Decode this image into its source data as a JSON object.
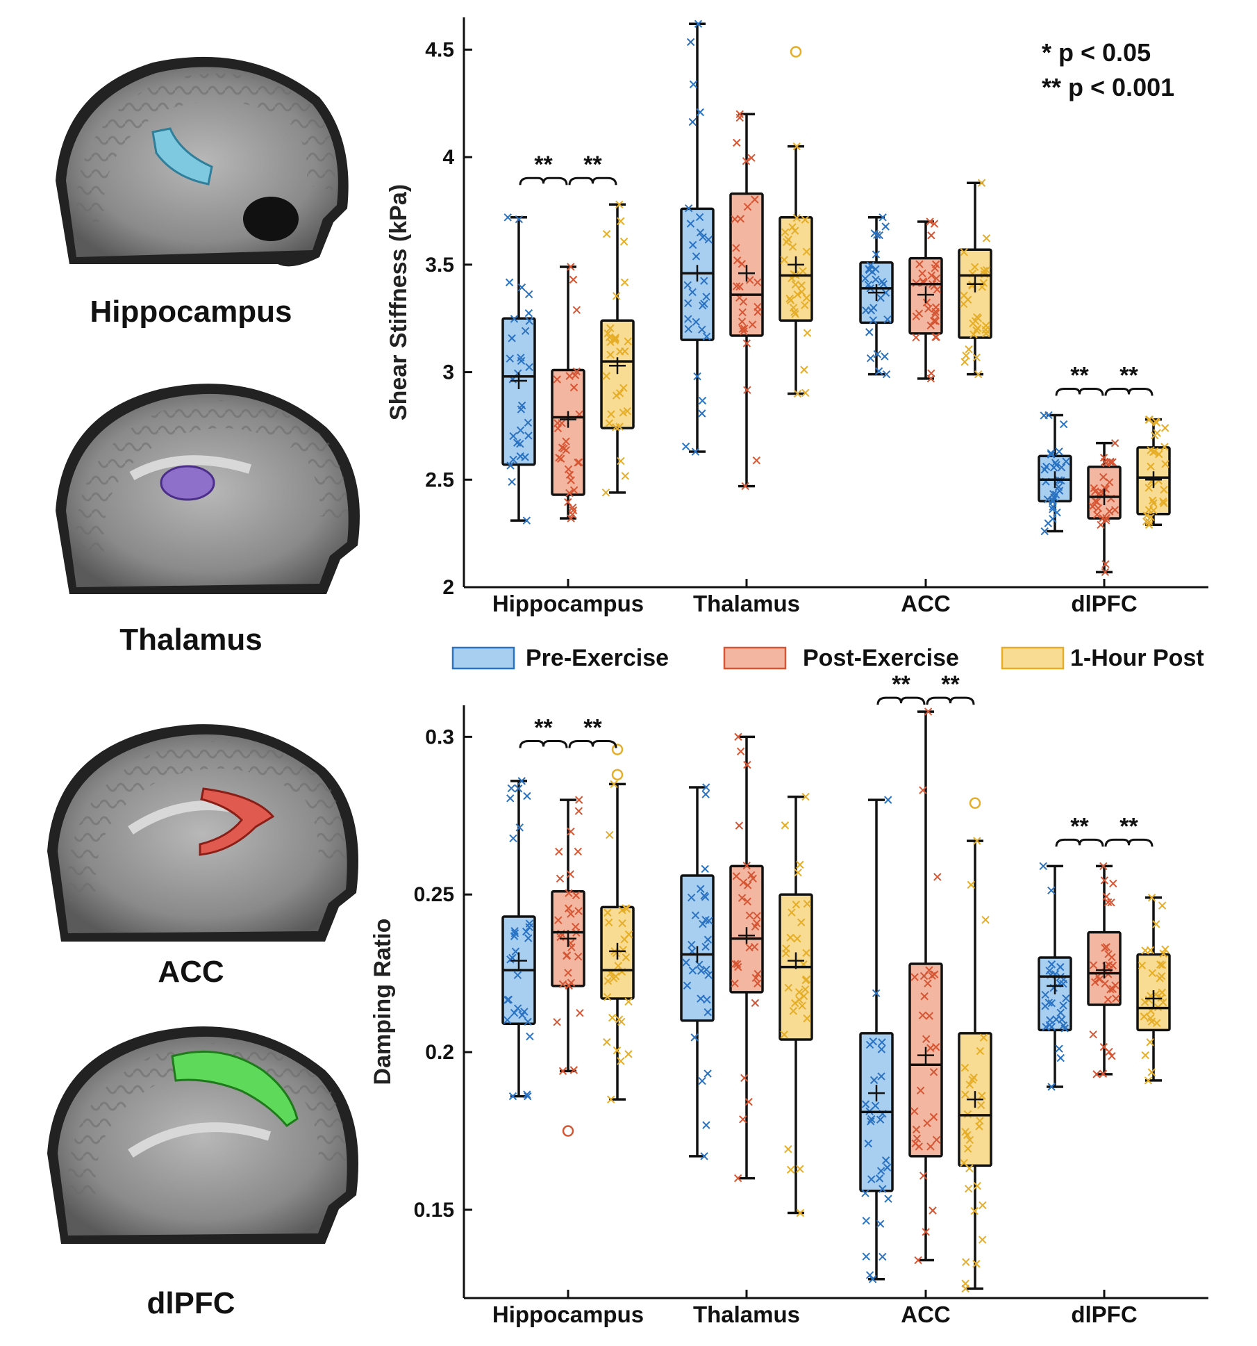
{
  "brain_panels": [
    {
      "label": "Hippocampus",
      "roi_color": "#7ec8e0"
    },
    {
      "label": "Thalamus",
      "roi_color": "#8e6fc9"
    },
    {
      "label": "ACC",
      "roi_color": "#e05a4f"
    },
    {
      "label": "dlPFC",
      "roi_color": "#5ed95a"
    }
  ],
  "legend": [
    {
      "label": "Pre-Exercise",
      "fill": "#a9cff0",
      "stroke": "#2a72c2",
      "pt": "#2a72c2"
    },
    {
      "label": "Post-Exercise",
      "fill": "#f3b6a1",
      "stroke": "#d65634",
      "pt": "#d65634"
    },
    {
      "label": "1-Hour Post",
      "fill": "#f8dc94",
      "stroke": "#e6ad26",
      "pt": "#e6ad26"
    }
  ],
  "significance_note": [
    "* p < 0.05",
    "** p < 0.001"
  ],
  "chart_data": [
    {
      "type": "box",
      "id": "stiffness",
      "ylabel": "Shear Stiffness (kPa)",
      "ylim": [
        2,
        4.65
      ],
      "yticks": [
        "2",
        "2.5",
        "3",
        "3.5",
        "4",
        "4.5"
      ],
      "categories": [
        "Hippocampus",
        "Thalamus",
        "ACC",
        "dlPFC"
      ],
      "series": [
        {
          "name": "Pre-Exercise",
          "boxes": [
            {
              "whisker_low": 2.31,
              "q1": 2.57,
              "median": 2.98,
              "q3": 3.25,
              "whisker_high": 3.72,
              "mean": 2.96,
              "outliers": []
            },
            {
              "whisker_low": 2.63,
              "q1": 3.15,
              "median": 3.46,
              "q3": 3.76,
              "whisker_high": 4.62,
              "mean": 3.46,
              "outliers": []
            },
            {
              "whisker_low": 2.99,
              "q1": 3.23,
              "median": 3.39,
              "q3": 3.51,
              "whisker_high": 3.72,
              "mean": 3.37,
              "outliers": []
            },
            {
              "whisker_low": 2.26,
              "q1": 2.4,
              "median": 2.5,
              "q3": 2.61,
              "whisker_high": 2.8,
              "mean": 2.5,
              "outliers": []
            }
          ]
        },
        {
          "name": "Post-Exercise",
          "boxes": [
            {
              "whisker_low": 2.32,
              "q1": 2.43,
              "median": 2.79,
              "q3": 3.01,
              "whisker_high": 3.49,
              "mean": 2.78,
              "outliers": []
            },
            {
              "whisker_low": 2.47,
              "q1": 3.17,
              "median": 3.36,
              "q3": 3.83,
              "whisker_high": 4.2,
              "mean": 3.46,
              "outliers": []
            },
            {
              "whisker_low": 2.97,
              "q1": 3.18,
              "median": 3.41,
              "q3": 3.53,
              "whisker_high": 3.7,
              "mean": 3.36,
              "outliers": []
            },
            {
              "whisker_low": 2.07,
              "q1": 2.32,
              "median": 2.42,
              "q3": 2.56,
              "whisker_high": 2.67,
              "mean": 2.42,
              "outliers": []
            }
          ]
        },
        {
          "name": "1-Hour Post",
          "boxes": [
            {
              "whisker_low": 2.44,
              "q1": 2.74,
              "median": 3.05,
              "q3": 3.24,
              "whisker_high": 3.78,
              "mean": 3.03,
              "outliers": []
            },
            {
              "whisker_low": 2.9,
              "q1": 3.24,
              "median": 3.45,
              "q3": 3.72,
              "whisker_high": 4.05,
              "mean": 3.5,
              "outliers": [
                4.49
              ]
            },
            {
              "whisker_low": 2.99,
              "q1": 3.16,
              "median": 3.45,
              "q3": 3.57,
              "whisker_high": 3.88,
              "mean": 3.41,
              "outliers": []
            },
            {
              "whisker_low": 2.29,
              "q1": 2.34,
              "median": 2.51,
              "q3": 2.65,
              "whisker_high": 2.78,
              "mean": 2.5,
              "outliers": []
            }
          ]
        }
      ],
      "significance": [
        {
          "category": 0,
          "from": 0,
          "to": 1,
          "label": "**"
        },
        {
          "category": 0,
          "from": 1,
          "to": 2,
          "label": "**"
        },
        {
          "category": 3,
          "from": 0,
          "to": 1,
          "label": "**"
        },
        {
          "category": 3,
          "from": 1,
          "to": 2,
          "label": "**"
        }
      ]
    },
    {
      "type": "box",
      "id": "damping",
      "ylabel": "Damping Ratio",
      "ylim": [
        0.122,
        0.31
      ],
      "yticks": [
        "0.15",
        "0.2",
        "0.25",
        "0.3"
      ],
      "categories": [
        "Hippocampus",
        "Thalamus",
        "ACC",
        "dlPFC"
      ],
      "series": [
        {
          "name": "Pre-Exercise",
          "boxes": [
            {
              "whisker_low": 0.186,
              "q1": 0.209,
              "median": 0.226,
              "q3": 0.243,
              "whisker_high": 0.286,
              "mean": 0.229,
              "outliers": []
            },
            {
              "whisker_low": 0.167,
              "q1": 0.21,
              "median": 0.231,
              "q3": 0.256,
              "whisker_high": 0.284,
              "mean": 0.231,
              "outliers": []
            },
            {
              "whisker_low": 0.128,
              "q1": 0.156,
              "median": 0.181,
              "q3": 0.206,
              "whisker_high": 0.28,
              "mean": 0.187,
              "outliers": []
            },
            {
              "whisker_low": 0.189,
              "q1": 0.207,
              "median": 0.224,
              "q3": 0.23,
              "whisker_high": 0.259,
              "mean": 0.221,
              "outliers": []
            }
          ]
        },
        {
          "name": "Post-Exercise",
          "boxes": [
            {
              "whisker_low": 0.194,
              "q1": 0.221,
              "median": 0.238,
              "q3": 0.251,
              "whisker_high": 0.28,
              "mean": 0.236,
              "outliers": [
                0.175
              ]
            },
            {
              "whisker_low": 0.16,
              "q1": 0.219,
              "median": 0.236,
              "q3": 0.259,
              "whisker_high": 0.3,
              "mean": 0.237,
              "outliers": []
            },
            {
              "whisker_low": 0.134,
              "q1": 0.167,
              "median": 0.196,
              "q3": 0.228,
              "whisker_high": 0.308,
              "mean": 0.199,
              "outliers": []
            },
            {
              "whisker_low": 0.193,
              "q1": 0.215,
              "median": 0.225,
              "q3": 0.238,
              "whisker_high": 0.259,
              "mean": 0.226,
              "outliers": []
            }
          ]
        },
        {
          "name": "1-Hour Post",
          "boxes": [
            {
              "whisker_low": 0.185,
              "q1": 0.217,
              "median": 0.226,
              "q3": 0.246,
              "whisker_high": 0.285,
              "mean": 0.232,
              "outliers": [
                0.288,
                0.296
              ]
            },
            {
              "whisker_low": 0.149,
              "q1": 0.204,
              "median": 0.227,
              "q3": 0.25,
              "whisker_high": 0.281,
              "mean": 0.229,
              "outliers": []
            },
            {
              "whisker_low": 0.125,
              "q1": 0.164,
              "median": 0.18,
              "q3": 0.206,
              "whisker_high": 0.267,
              "mean": 0.185,
              "outliers": [
                0.279
              ]
            },
            {
              "whisker_low": 0.191,
              "q1": 0.207,
              "median": 0.214,
              "q3": 0.231,
              "whisker_high": 0.249,
              "mean": 0.217,
              "outliers": []
            }
          ]
        }
      ],
      "significance": [
        {
          "category": 0,
          "from": 0,
          "to": 1,
          "label": "**"
        },
        {
          "category": 0,
          "from": 1,
          "to": 2,
          "label": "**"
        },
        {
          "category": 2,
          "from": 0,
          "to": 1,
          "label": "**"
        },
        {
          "category": 2,
          "from": 1,
          "to": 2,
          "label": "**"
        },
        {
          "category": 3,
          "from": 0,
          "to": 1,
          "label": "**"
        },
        {
          "category": 3,
          "from": 1,
          "to": 2,
          "label": "**"
        }
      ]
    }
  ]
}
